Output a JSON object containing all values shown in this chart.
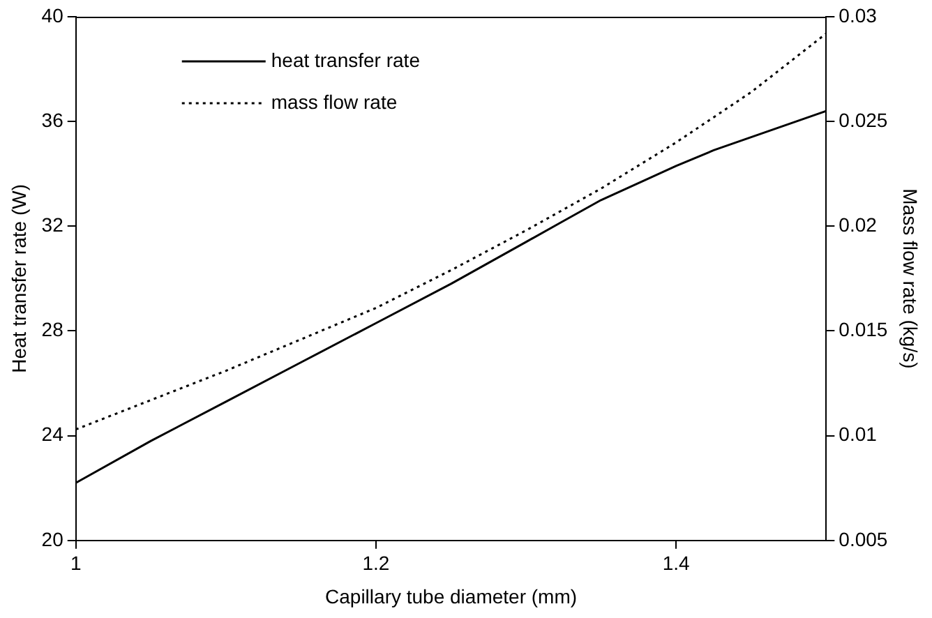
{
  "chart_data": {
    "type": "line",
    "xlabel": "Capillary tube diameter (mm)",
    "ylabel": "Heat transfer rate (W)",
    "y2label": "Mass flow rate (kg/s)",
    "xlim": [
      1,
      1.5
    ],
    "xticks": [
      1,
      1.2,
      1.4
    ],
    "ylim": [
      20,
      40
    ],
    "yticks": [
      20,
      24,
      28,
      32,
      36,
      40
    ],
    "y2lim": [
      0.005,
      0.03
    ],
    "y2ticks": [
      0.005,
      0.01,
      0.015,
      0.02,
      0.025,
      0.03
    ],
    "grid": false,
    "legend": "top left",
    "marker": "none",
    "series": [
      {
        "name": "heat transfer rate",
        "color": "#000000",
        "line_style": "solid",
        "x": [
          1,
          1.05,
          1.1,
          1.15,
          1.2,
          1.25,
          1.3,
          1.325,
          1.35,
          1.4,
          1.425,
          1.45,
          1.475,
          1.5
        ],
        "values": [
          22.2,
          23.8,
          25.3,
          26.8,
          28.3,
          29.8,
          31.4,
          32.2,
          33.0,
          34.3,
          34.9,
          35.4,
          35.9,
          36.4
        ]
      },
      {
        "name": "mass flow rate",
        "color": "#000000",
        "line_style": "dotted",
        "axis": "y2",
        "x": [
          1,
          1.05,
          1.1,
          1.15,
          1.2,
          1.25,
          1.3,
          1.35,
          1.4,
          1.45,
          1.5
        ],
        "values": [
          0.0103,
          0.0117,
          0.0131,
          0.0146,
          0.0161,
          0.0179,
          0.0198,
          0.0218,
          0.024,
          0.0264,
          0.0292
        ]
      }
    ]
  }
}
